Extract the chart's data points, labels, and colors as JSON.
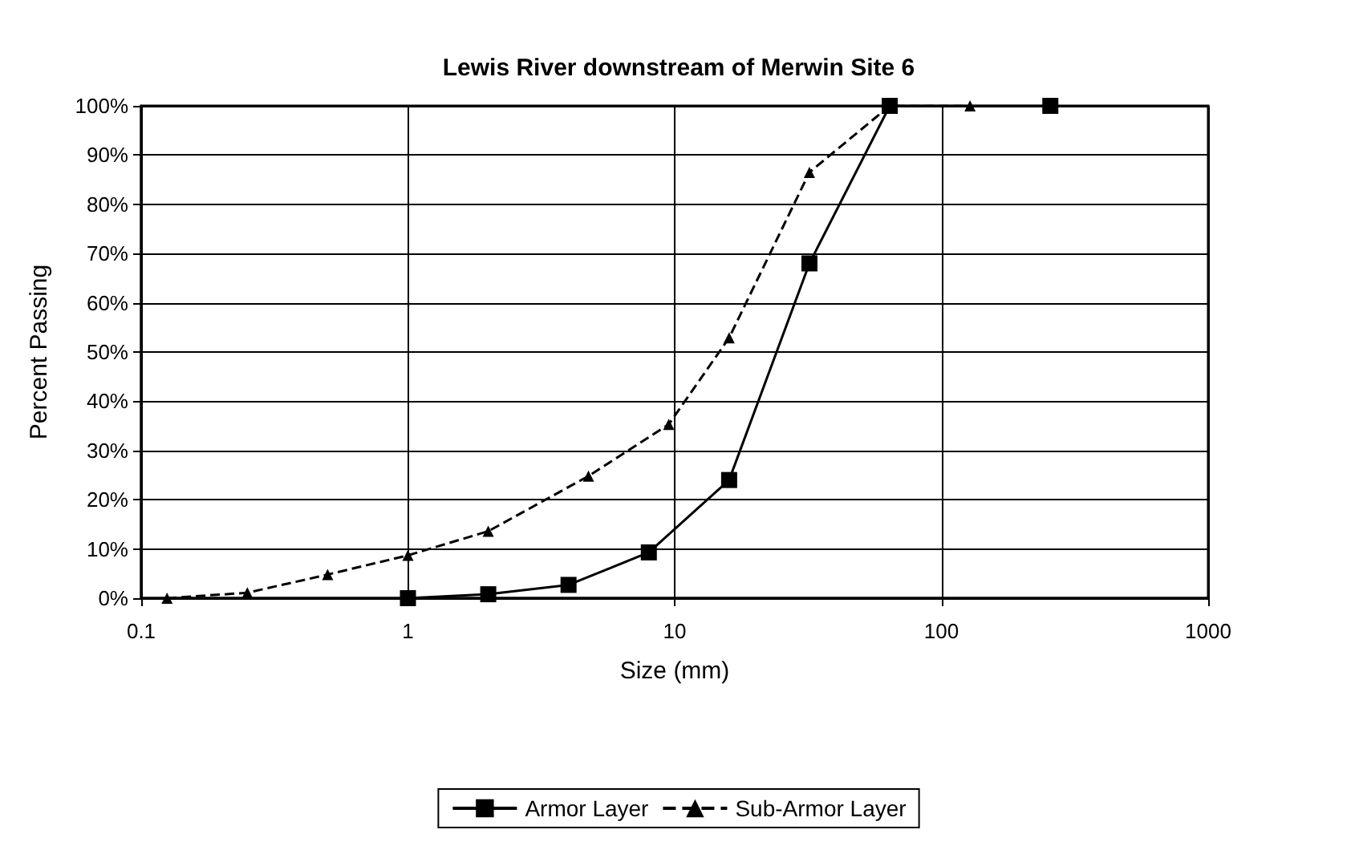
{
  "chart_data": {
    "type": "line",
    "title": "Lewis River downstream of Merwin Site 6",
    "xlabel": "Size (mm)",
    "ylabel": "Percent Passing",
    "log": "x",
    "xlim": [
      0.1,
      1000
    ],
    "xticks": [
      0.1,
      1,
      10,
      100,
      1000
    ],
    "ylim": [
      0,
      100
    ],
    "yticks": [
      {
        "value": 0,
        "label": "0%"
      },
      {
        "value": 10,
        "label": "10%"
      },
      {
        "value": 20,
        "label": "20%"
      },
      {
        "value": 30,
        "label": "30%"
      },
      {
        "value": 40,
        "label": "40%"
      },
      {
        "value": 50,
        "label": "50%"
      },
      {
        "value": 60,
        "label": "60%"
      },
      {
        "value": 70,
        "label": "70%"
      },
      {
        "value": 80,
        "label": "80%"
      },
      {
        "value": 90,
        "label": "90%"
      },
      {
        "value": 100,
        "label": "100%"
      }
    ],
    "grid": true,
    "legend": "bottom",
    "series": [
      {
        "name": "Armor Layer",
        "color": "#000000",
        "marker": "square",
        "line_style": "solid",
        "x": [
          1,
          2,
          4,
          8,
          16,
          32,
          64,
          256
        ],
        "values": [
          0,
          0.8,
          2.7,
          9.3,
          24,
          68,
          100,
          100
        ]
      },
      {
        "name": "Sub-Armor Layer",
        "color": "#000000",
        "marker": "triangle",
        "line_style": "dashed",
        "x": [
          0.125,
          0.25,
          0.5,
          1,
          2,
          4.75,
          9.5,
          16,
          32,
          64,
          128
        ],
        "values": [
          0,
          1.1,
          4.8,
          8.7,
          13.6,
          24.8,
          35.3,
          52.9,
          86.5,
          100,
          100
        ]
      }
    ]
  }
}
